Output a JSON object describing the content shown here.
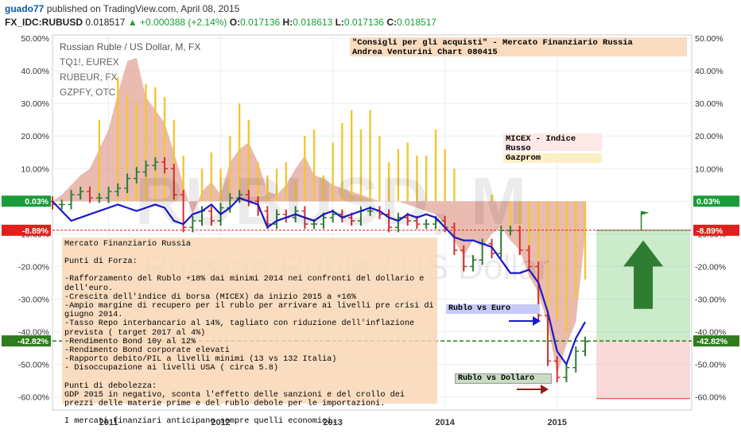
{
  "header": {
    "user": "guado77",
    "published_text": "published on TradingView.com, April 08, 2015",
    "symbol": "FX_IDC:RUBUSD",
    "price": "0.018517",
    "change": "+0.000388 (+2.14%)",
    "o_label": "O:",
    "o_value": "0.017136",
    "h_label": "H:",
    "h_value": "0.018613",
    "l_label": "L:",
    "l_value": "0.017136",
    "c_label": "C:",
    "c_value": "0.018517"
  },
  "legend": {
    "title": "Russian Ruble / US Dollar, M, FX",
    "items": [
      "TQ1!, EUREX",
      "RUBEUR, FX",
      "GZPFY, OTC"
    ]
  },
  "watermark": {
    "symbol": "RUBUSD, M",
    "name": "Russian Ruble / US Dollar"
  },
  "annotations": {
    "consigli_line1": "\"Consigli per gli acquisti\" - Mercato Finanziario Russia",
    "consigli_line2": "Andrea Venturini Chart 080415",
    "micex": "MICEX - Indice Russo",
    "gazprom": "Gazprom",
    "rublo_euro": "Rublo vs Euro",
    "rublo_dollaro": "Rublo vs Dollaro",
    "info_lines": [
      "Mercato Finanziario Russia",
      "",
      "Punti di Forza:",
      "",
      "-Rafforzamento del Rublo +18% dai minimi 2014 nei confronti del dollario e dell'euro.",
      "-Crescita dell'indice di borsa (MICEX) da inizio 2015 a +16%",
      "-Ampio margine di recupero per il rublo per arrivare ai livelli pre crisi di giugno 2014.",
      "-Tasso Repo interbancario al 14%, tagliato con riduzione dell'inflazione prevista ( target 2017 al 4%)",
      "-Rendimento Bond 10y al 12%",
      "-Rendimento Bond corporate elevati",
      "-Rapporto debito/PIL a livelli minimi (13 vs 132 Italia)",
      "- Disoccupazione ai livelli USA ( circa 5.8)",
      "",
      "Punti di debolezza:",
      "GDP 2015 in negativo, sconta l'effetto delle sanzioni e del crollo dei prezzi delle materie prime e del rublo debole per le importazioni.",
      "",
      "I mercati finanziari anticipano sempre quelli economici."
    ]
  },
  "chart_data": {
    "type": "line",
    "x_ticks": [
      "2011",
      "2012",
      "2013",
      "2014",
      "2015"
    ],
    "y_ticks": [
      50,
      40,
      30,
      20,
      10,
      0,
      -10,
      -20,
      -30,
      -40,
      -50,
      -60
    ],
    "ylim": [
      -64,
      51
    ],
    "ytick_suffix": ".00%",
    "ytick_labels": [
      "50.00%",
      "40.00%",
      "30.00%",
      "20.00%",
      "10.00%",
      "0.00%",
      "-10.00%",
      "-20.00%",
      "-30.00%",
      "-40.00%",
      "-50.00%",
      "-60.00%"
    ],
    "price_labels": [
      {
        "text": "0.03%",
        "value": 0.03,
        "color": "#1a9c3a"
      },
      {
        "text": "-8.89%",
        "value": -8.89,
        "color": "#e0201b"
      },
      {
        "text": "-42.82%",
        "value": -42.82,
        "color": "#2f7d1e"
      }
    ],
    "x_range": [
      2010.5,
      2016.2
    ],
    "series": [
      {
        "name": "Rublo vs Euro",
        "type": "line",
        "color": "#1a1acc",
        "x": [
          2010.5,
          2010.583,
          2010.667,
          2010.75,
          2010.833,
          2010.917,
          2011.0,
          2011.083,
          2011.167,
          2011.25,
          2011.333,
          2011.417,
          2011.5,
          2011.583,
          2011.667,
          2011.75,
          2011.833,
          2011.917,
          2012.0,
          2012.083,
          2012.167,
          2012.25,
          2012.333,
          2012.417,
          2012.5,
          2012.583,
          2012.667,
          2012.75,
          2012.833,
          2012.917,
          2013.0,
          2013.083,
          2013.167,
          2013.25,
          2013.333,
          2013.417,
          2013.5,
          2013.583,
          2013.667,
          2013.75,
          2013.833,
          2013.917,
          2014.0,
          2014.083,
          2014.167,
          2014.25,
          2014.333,
          2014.417,
          2014.5,
          2014.583,
          2014.667,
          2014.75,
          2014.833,
          2014.917,
          2015.0,
          2015.083,
          2015.167,
          2015.25
        ],
        "y": [
          0,
          -3,
          -6,
          -5,
          -4,
          -3,
          -2,
          -1,
          -2,
          -3,
          -2,
          -1,
          -2,
          -6,
          -7,
          -4,
          -3,
          -1,
          -4,
          -2,
          1,
          0,
          -1,
          -8,
          -6,
          -5,
          -4,
          -5,
          -6,
          -4,
          -3,
          -5,
          -4,
          -3,
          -2,
          -3,
          -5,
          -6,
          -4,
          -5,
          -4,
          -5,
          -8,
          -11,
          -12,
          -12,
          -13,
          -14,
          -18,
          -22,
          -22,
          -21,
          -25,
          -34,
          -46,
          -50,
          -42,
          -37
        ]
      },
      {
        "name": "MICEX - Indice Russo",
        "type": "area",
        "color": "#e8b0a4",
        "x": [
          2010.5,
          2010.583,
          2010.667,
          2010.75,
          2010.833,
          2010.917,
          2011.0,
          2011.083,
          2011.167,
          2011.25,
          2011.333,
          2011.417,
          2011.5,
          2011.583,
          2011.667,
          2011.75,
          2011.833,
          2011.917,
          2012.0,
          2012.083,
          2012.167,
          2012.25,
          2012.333,
          2012.417,
          2012.5,
          2012.583,
          2012.667,
          2012.75,
          2012.833,
          2012.917,
          2013.0,
          2013.083,
          2013.167,
          2013.25,
          2013.333,
          2013.417,
          2013.5,
          2013.583,
          2013.667,
          2013.75,
          2013.833,
          2013.917,
          2014.0,
          2014.083,
          2014.167,
          2014.25,
          2014.333,
          2014.417,
          2014.5,
          2014.583,
          2014.667,
          2014.75,
          2014.833,
          2014.917,
          2015.0,
          2015.083,
          2015.167,
          2015.25
        ],
        "y": [
          0,
          2,
          5,
          8,
          10,
          16,
          22,
          33,
          43,
          44,
          32,
          28,
          24,
          15,
          5,
          -4,
          3,
          6,
          2,
          12,
          16,
          18,
          12,
          3,
          2,
          5,
          10,
          14,
          8,
          7,
          5,
          4,
          3,
          2,
          1,
          0,
          0,
          0,
          -1,
          -2,
          -3,
          -4,
          -7,
          -12,
          -17,
          -12,
          -14,
          -10,
          -8,
          -12,
          -15,
          -23,
          -28,
          -38,
          -53,
          -44,
          -37,
          -10
        ]
      },
      {
        "name": "Gazprom",
        "type": "bar",
        "color": "#f2c632",
        "x": [
          2010.917,
          2011.083,
          2011.167,
          2011.25,
          2011.333,
          2011.417,
          2011.5,
          2011.583,
          2011.667,
          2011.833,
          2011.917,
          2012.0,
          2012.083,
          2012.167,
          2012.25,
          2012.333,
          2012.417,
          2012.5,
          2012.583,
          2012.667,
          2012.75,
          2012.833,
          2012.917,
          2013.0,
          2013.083,
          2013.167,
          2013.25,
          2013.333,
          2013.417,
          2013.5,
          2013.583,
          2013.667,
          2013.75,
          2013.833,
          2013.917,
          2014.0,
          2014.083,
          2014.417,
          2014.5,
          2014.583,
          2014.667,
          2014.75,
          2014.833,
          2014.917,
          2015.0,
          2015.083,
          2015.167,
          2015.25
        ],
        "y": [
          25,
          38,
          33,
          30,
          36,
          35,
          32,
          25,
          14,
          10,
          15,
          10,
          20,
          30,
          25,
          12,
          8,
          10,
          12,
          6,
          20,
          22,
          8,
          18,
          24,
          28,
          22,
          28,
          20,
          12,
          16,
          18,
          14,
          14,
          22,
          16,
          10,
          2,
          0,
          -10,
          -16,
          -21,
          -32,
          -41,
          -36,
          -40,
          -30,
          -24
        ]
      },
      {
        "name": "Rublo vs Dollaro",
        "type": "ohlc",
        "color_up": "#2e7d32",
        "color_down": "#d32f2f",
        "x": [
          2010.5,
          2010.583,
          2010.667,
          2010.75,
          2010.833,
          2010.917,
          2011.0,
          2011.083,
          2011.167,
          2011.25,
          2011.333,
          2011.417,
          2011.5,
          2011.583,
          2011.667,
          2011.75,
          2011.833,
          2011.917,
          2012.0,
          2012.083,
          2012.167,
          2012.25,
          2012.333,
          2012.417,
          2012.5,
          2012.583,
          2012.667,
          2012.75,
          2012.833,
          2012.917,
          2013.0,
          2013.083,
          2013.167,
          2013.25,
          2013.333,
          2013.417,
          2013.5,
          2013.583,
          2013.667,
          2013.75,
          2013.833,
          2013.917,
          2014.0,
          2014.083,
          2014.167,
          2014.25,
          2014.333,
          2014.417,
          2014.5,
          2014.583,
          2014.667,
          2014.75,
          2014.833,
          2014.917,
          2015.0,
          2015.083,
          2015.167,
          2015.25
        ],
        "open": [
          0,
          -1,
          -1,
          2,
          3,
          1,
          1,
          3,
          4,
          7,
          9,
          11,
          12,
          10,
          2,
          -8,
          -6,
          -3,
          -6,
          -2,
          1,
          2,
          0,
          -3,
          -7,
          -4,
          -5,
          -3,
          -7,
          -7,
          -5,
          -4,
          -5,
          -6,
          -3,
          -3,
          -4,
          -8,
          -5,
          -6,
          -7,
          -7,
          -6,
          -8,
          -15,
          -20,
          -18,
          -13,
          -16,
          -9,
          -9,
          -15,
          -20,
          -35,
          -49,
          -54,
          -51,
          -46
        ],
        "close": [
          -1,
          -1,
          2,
          3,
          1,
          1,
          3,
          4,
          7,
          9,
          11,
          12,
          10,
          2,
          -8,
          -6,
          -3,
          -6,
          -2,
          1,
          2,
          0,
          -3,
          -7,
          -4,
          -5,
          -3,
          -7,
          -7,
          -5,
          -4,
          -5,
          -6,
          -3,
          -3,
          -4,
          -8,
          -5,
          -6,
          -7,
          -7,
          -6,
          -8,
          -15,
          -20,
          -18,
          -13,
          -16,
          -9,
          -9,
          -15,
          -20,
          -35,
          -49,
          -54,
          -51,
          -46,
          -43
        ]
      }
    ]
  }
}
